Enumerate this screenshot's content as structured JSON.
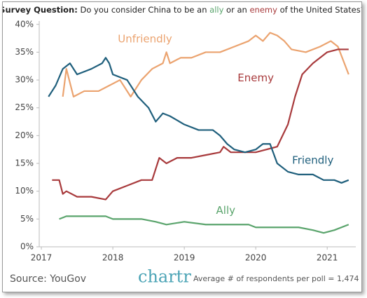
{
  "chart_data": {
    "type": "line",
    "title_parts": [
      "Survey Question:",
      "Do you consider China to be an",
      "ally",
      "or an",
      "enemy",
      "of the United States?"
    ],
    "source": "Source: YouGov",
    "brand": "chartr",
    "note": "Average # of respondents per poll = 1,474",
    "xlim": [
      2016.97,
      2021.4
    ],
    "xticks": [
      2017,
      2018,
      2019,
      2020,
      2021
    ],
    "ylim": [
      0,
      40.6
    ],
    "yticks": [
      {
        "value": 0,
        "label": "0%"
      },
      {
        "value": 5,
        "label": "5%"
      },
      {
        "value": 10,
        "label": "10%"
      },
      {
        "value": 15,
        "label": "15%"
      },
      {
        "value": 20,
        "label": "20%"
      },
      {
        "value": 25,
        "label": "25%"
      },
      {
        "value": 30,
        "label": "30%"
      },
      {
        "value": 35,
        "label": "35%"
      },
      {
        "value": 40,
        "label": "40%"
      }
    ],
    "series": [
      {
        "name": "Unfriendly",
        "color": "#eba36f",
        "x": [
          2017.3,
          2017.35,
          2017.45,
          2017.6,
          2017.8,
          2017.95,
          2018.1,
          2018.25,
          2018.4,
          2018.55,
          2018.7,
          2018.75,
          2018.8,
          2018.95,
          2019.1,
          2019.3,
          2019.5,
          2019.7,
          2019.9,
          2020.0,
          2020.1,
          2020.2,
          2020.3,
          2020.4,
          2020.5,
          2020.7,
          2020.9,
          2021.05,
          2021.15,
          2021.3
        ],
        "values": [
          27,
          32,
          27,
          28,
          28,
          29,
          30,
          27,
          30,
          32,
          33,
          35,
          33,
          34,
          34,
          35,
          35,
          36,
          37,
          38,
          37,
          38.5,
          38,
          37,
          35.5,
          35,
          36,
          37,
          36,
          31
        ]
      },
      {
        "name": "Enemy",
        "color": "#a83a3c",
        "x": [
          2017.15,
          2017.25,
          2017.3,
          2017.35,
          2017.5,
          2017.7,
          2017.9,
          2018.0,
          2018.2,
          2018.4,
          2018.55,
          2018.65,
          2018.75,
          2018.9,
          2019.1,
          2019.3,
          2019.5,
          2019.55,
          2019.65,
          2019.8,
          2020.0,
          2020.15,
          2020.3,
          2020.45,
          2020.55,
          2020.65,
          2020.8,
          2021.0,
          2021.15,
          2021.3
        ],
        "values": [
          12,
          12,
          9.5,
          10,
          9,
          9,
          8.5,
          10,
          11,
          12,
          12,
          16,
          15,
          16,
          16,
          16.5,
          17,
          18,
          17,
          17,
          17,
          17.5,
          18,
          22,
          27,
          31,
          33,
          35,
          35.5,
          35.5
        ]
      },
      {
        "name": "Friendly",
        "color": "#1f5f7c",
        "x": [
          2017.1,
          2017.2,
          2017.3,
          2017.4,
          2017.5,
          2017.7,
          2017.85,
          2017.9,
          2017.95,
          2018.0,
          2018.2,
          2018.35,
          2018.5,
          2018.6,
          2018.7,
          2018.8,
          2019.0,
          2019.2,
          2019.4,
          2019.5,
          2019.6,
          2019.7,
          2019.85,
          2020.0,
          2020.1,
          2020.2,
          2020.3,
          2020.45,
          2020.6,
          2020.8,
          2020.95,
          2021.1,
          2021.2,
          2021.3
        ],
        "values": [
          27,
          29,
          32,
          33,
          31,
          32,
          33,
          34,
          33,
          31,
          30,
          27,
          25,
          22.5,
          24,
          23.5,
          22,
          21,
          21,
          20,
          18.5,
          17.5,
          17,
          17.5,
          18.5,
          18.5,
          15,
          13.5,
          13,
          13,
          12,
          12,
          11.5,
          12
        ]
      },
      {
        "name": "Ally",
        "color": "#5aa46c",
        "x": [
          2017.25,
          2017.35,
          2017.5,
          2017.7,
          2017.9,
          2018.0,
          2018.2,
          2018.4,
          2018.6,
          2018.75,
          2019.0,
          2019.3,
          2019.6,
          2019.9,
          2020.0,
          2020.3,
          2020.6,
          2020.8,
          2020.95,
          2021.1,
          2021.3
        ],
        "values": [
          5,
          5.5,
          5.5,
          5.5,
          5.5,
          5,
          5,
          5,
          4.5,
          4,
          4.5,
          4,
          4,
          4,
          3.5,
          3.5,
          3.5,
          3,
          2.5,
          3,
          4
        ]
      }
    ]
  }
}
